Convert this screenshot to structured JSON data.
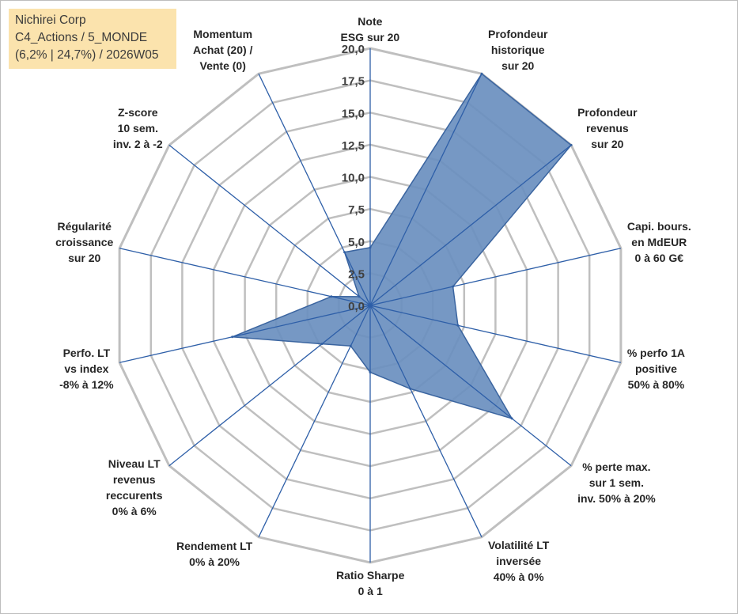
{
  "info_box": {
    "line1": "Nichirei Corp",
    "line2": "C4_Actions / 5_MONDE",
    "line3": "(6,2% | 24,7%) / 2026W05"
  },
  "colors": {
    "grid": "#bfbfbf",
    "spoke": "#2e5fa8",
    "fill": "#6a8fbf",
    "stroke": "#3b65a0",
    "info_bg": "#fbe3ad"
  },
  "chart_data": {
    "type": "radar",
    "title": "",
    "rmin": 0,
    "rmax": 20,
    "ticks": [
      "0,0",
      "2,5",
      "5,0",
      "7,5",
      "10,0",
      "12,5",
      "15,0",
      "17,5",
      "20,0"
    ],
    "tick_values": [
      0,
      2.5,
      5,
      7.5,
      10,
      12.5,
      15,
      17.5,
      20
    ],
    "axes": [
      {
        "lines": [
          "Note",
          "ESG sur 20"
        ]
      },
      {
        "lines": [
          "Profondeur",
          "historique",
          "sur 20"
        ]
      },
      {
        "lines": [
          "Profondeur",
          "revenus",
          "sur 20"
        ]
      },
      {
        "lines": [
          "Capi. bours.",
          "en MdEUR",
          "0 à 60 G€"
        ]
      },
      {
        "lines": [
          "% perfo 1A",
          "positive",
          "50% à 80%"
        ]
      },
      {
        "lines": [
          "% perte max.",
          "sur 1 sem.",
          "inv. 50% à 20%"
        ]
      },
      {
        "lines": [
          "Volatilité LT",
          "inversée",
          "40% à 0%"
        ]
      },
      {
        "lines": [
          "Ratio Sharpe",
          "0 à 1"
        ]
      },
      {
        "lines": [
          "Rendement LT",
          "0% à 20%"
        ]
      },
      {
        "lines": [
          "Niveau LT",
          "revenus",
          "reccurents",
          "0% à 6%"
        ]
      },
      {
        "lines": [
          "Perfo. LT",
          "vs index",
          "-8% à 12%"
        ]
      },
      {
        "lines": [
          "Régularité",
          "croissance",
          "sur 20"
        ]
      },
      {
        "lines": [
          "Z-score",
          "10 sem.",
          "inv. 2 à -2"
        ]
      },
      {
        "lines": [
          "Momentum",
          "Achat (20) /",
          "Vente (0)"
        ]
      }
    ],
    "series": [
      {
        "values": [
          4.5,
          20,
          20,
          6.6,
          7.0,
          14.1,
          7.2,
          5.2,
          3.5,
          4.8,
          11.0,
          3.1,
          1.1,
          4.6
        ]
      }
    ]
  }
}
